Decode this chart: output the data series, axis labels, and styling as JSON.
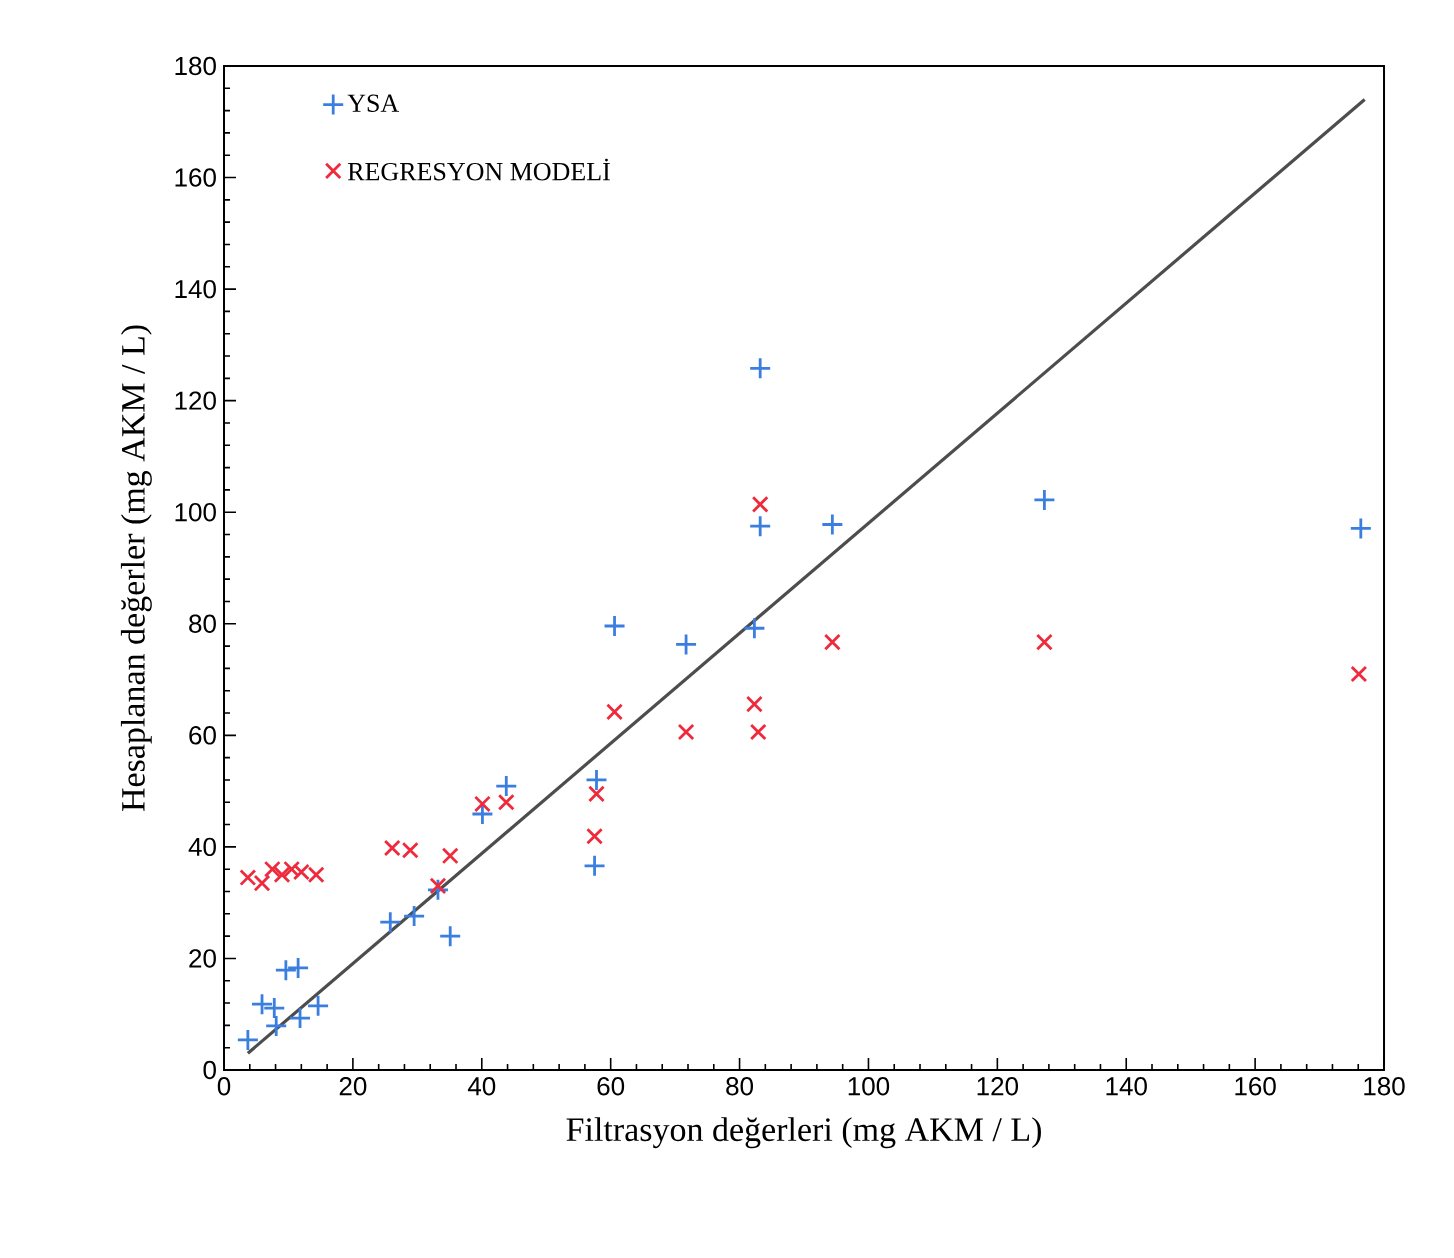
{
  "chart_data": {
    "type": "scatter",
    "xlabel": "Filtrasyon değerleri (mg AKM / L)",
    "ylabel": "Hesaplanan değerler (mg AKM / L)",
    "xlim": [
      0,
      180
    ],
    "ylim": [
      0,
      180
    ],
    "xticks": [
      0,
      20,
      40,
      60,
      80,
      100,
      120,
      140,
      160,
      180
    ],
    "yticks": [
      0,
      20,
      40,
      60,
      80,
      100,
      120,
      140,
      160,
      180
    ],
    "grid": false,
    "legend": "top left",
    "series": [
      {
        "name": "YSA",
        "color": "#3a7fe0",
        "marker": "plus",
        "x": [
          3.7,
          5.9,
          7.8,
          8.1,
          9.6,
          11.5,
          11.8,
          14.6,
          25.8,
          29.5,
          33.2,
          35.1,
          40.1,
          43.8,
          57.8,
          57.5,
          83.2,
          83.2,
          94.4,
          60.6,
          71.7,
          82.3,
          127.3,
          176.4
        ],
        "values": [
          5.4,
          11.8,
          11.1,
          7.9,
          17.9,
          18.3,
          9.3,
          11.5,
          26.5,
          27.6,
          32.3,
          24.0,
          45.9,
          50.9,
          52.0,
          36.6,
          125.8,
          97.5,
          97.8,
          79.6,
          76.3,
          79.2,
          102.2,
          97.1
        ]
      },
      {
        "name": "REGRESYON MODELİ",
        "color": "#ee2a3c",
        "marker": "cross",
        "x": [
          3.7,
          5.9,
          7.5,
          9.0,
          10.5,
          12.0,
          14.3,
          26.1,
          28.9,
          33.2,
          35.1,
          40.1,
          43.8,
          57.5,
          57.8,
          83.2,
          94.4,
          60.6,
          71.7,
          82.3,
          82.9,
          127.3,
          176.1
        ],
        "values": [
          34.5,
          33.5,
          36.0,
          35.0,
          36.0,
          35.5,
          35.0,
          39.8,
          39.4,
          33.0,
          38.4,
          47.7,
          48.0,
          41.9,
          49.5,
          101.4,
          76.7,
          64.2,
          60.6,
          65.6,
          60.6,
          76.7,
          71.0
        ]
      },
      {
        "type": "line",
        "color": "#4d4d4d",
        "line_style": "solid",
        "marker": "none",
        "x": [
          3.7,
          177
        ],
        "values": [
          3,
          174
        ]
      }
    ]
  }
}
